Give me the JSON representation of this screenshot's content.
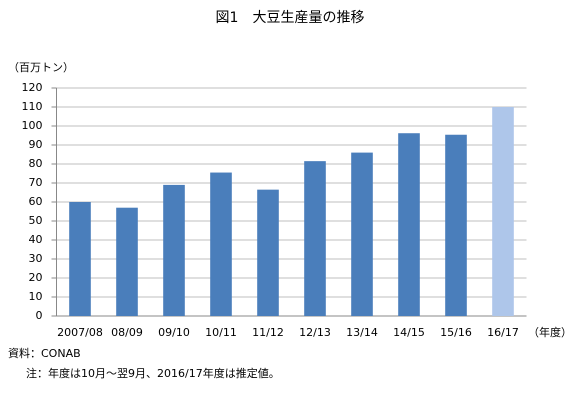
{
  "chart_data": {
    "type": "bar",
    "title": "図1　大豆生産量の推移",
    "y_label": "（百万トン）",
    "x_label": "（年度）",
    "source": "資料：CONAB",
    "note": "注：年度は10月～翌9月、2016/17年度は推定値。",
    "categories": [
      "2007/08",
      "08/09",
      "09/10",
      "10/11",
      "11/12",
      "12/13",
      "13/14",
      "14/15",
      "15/16",
      "16/17"
    ],
    "values": [
      60,
      57,
      69,
      75.5,
      66.5,
      81.5,
      86,
      96.2,
      95.4,
      110
    ],
    "colors": [
      "#4a7ebb",
      "#4a7ebb",
      "#4a7ebb",
      "#4a7ebb",
      "#4a7ebb",
      "#4a7ebb",
      "#4a7ebb",
      "#4a7ebb",
      "#4a7ebb",
      "#aec6ea"
    ],
    "ylim": [
      0,
      120
    ],
    "yticks": [
      0,
      10,
      20,
      30,
      40,
      50,
      60,
      70,
      80,
      90,
      100,
      110,
      120
    ],
    "grid": true
  }
}
